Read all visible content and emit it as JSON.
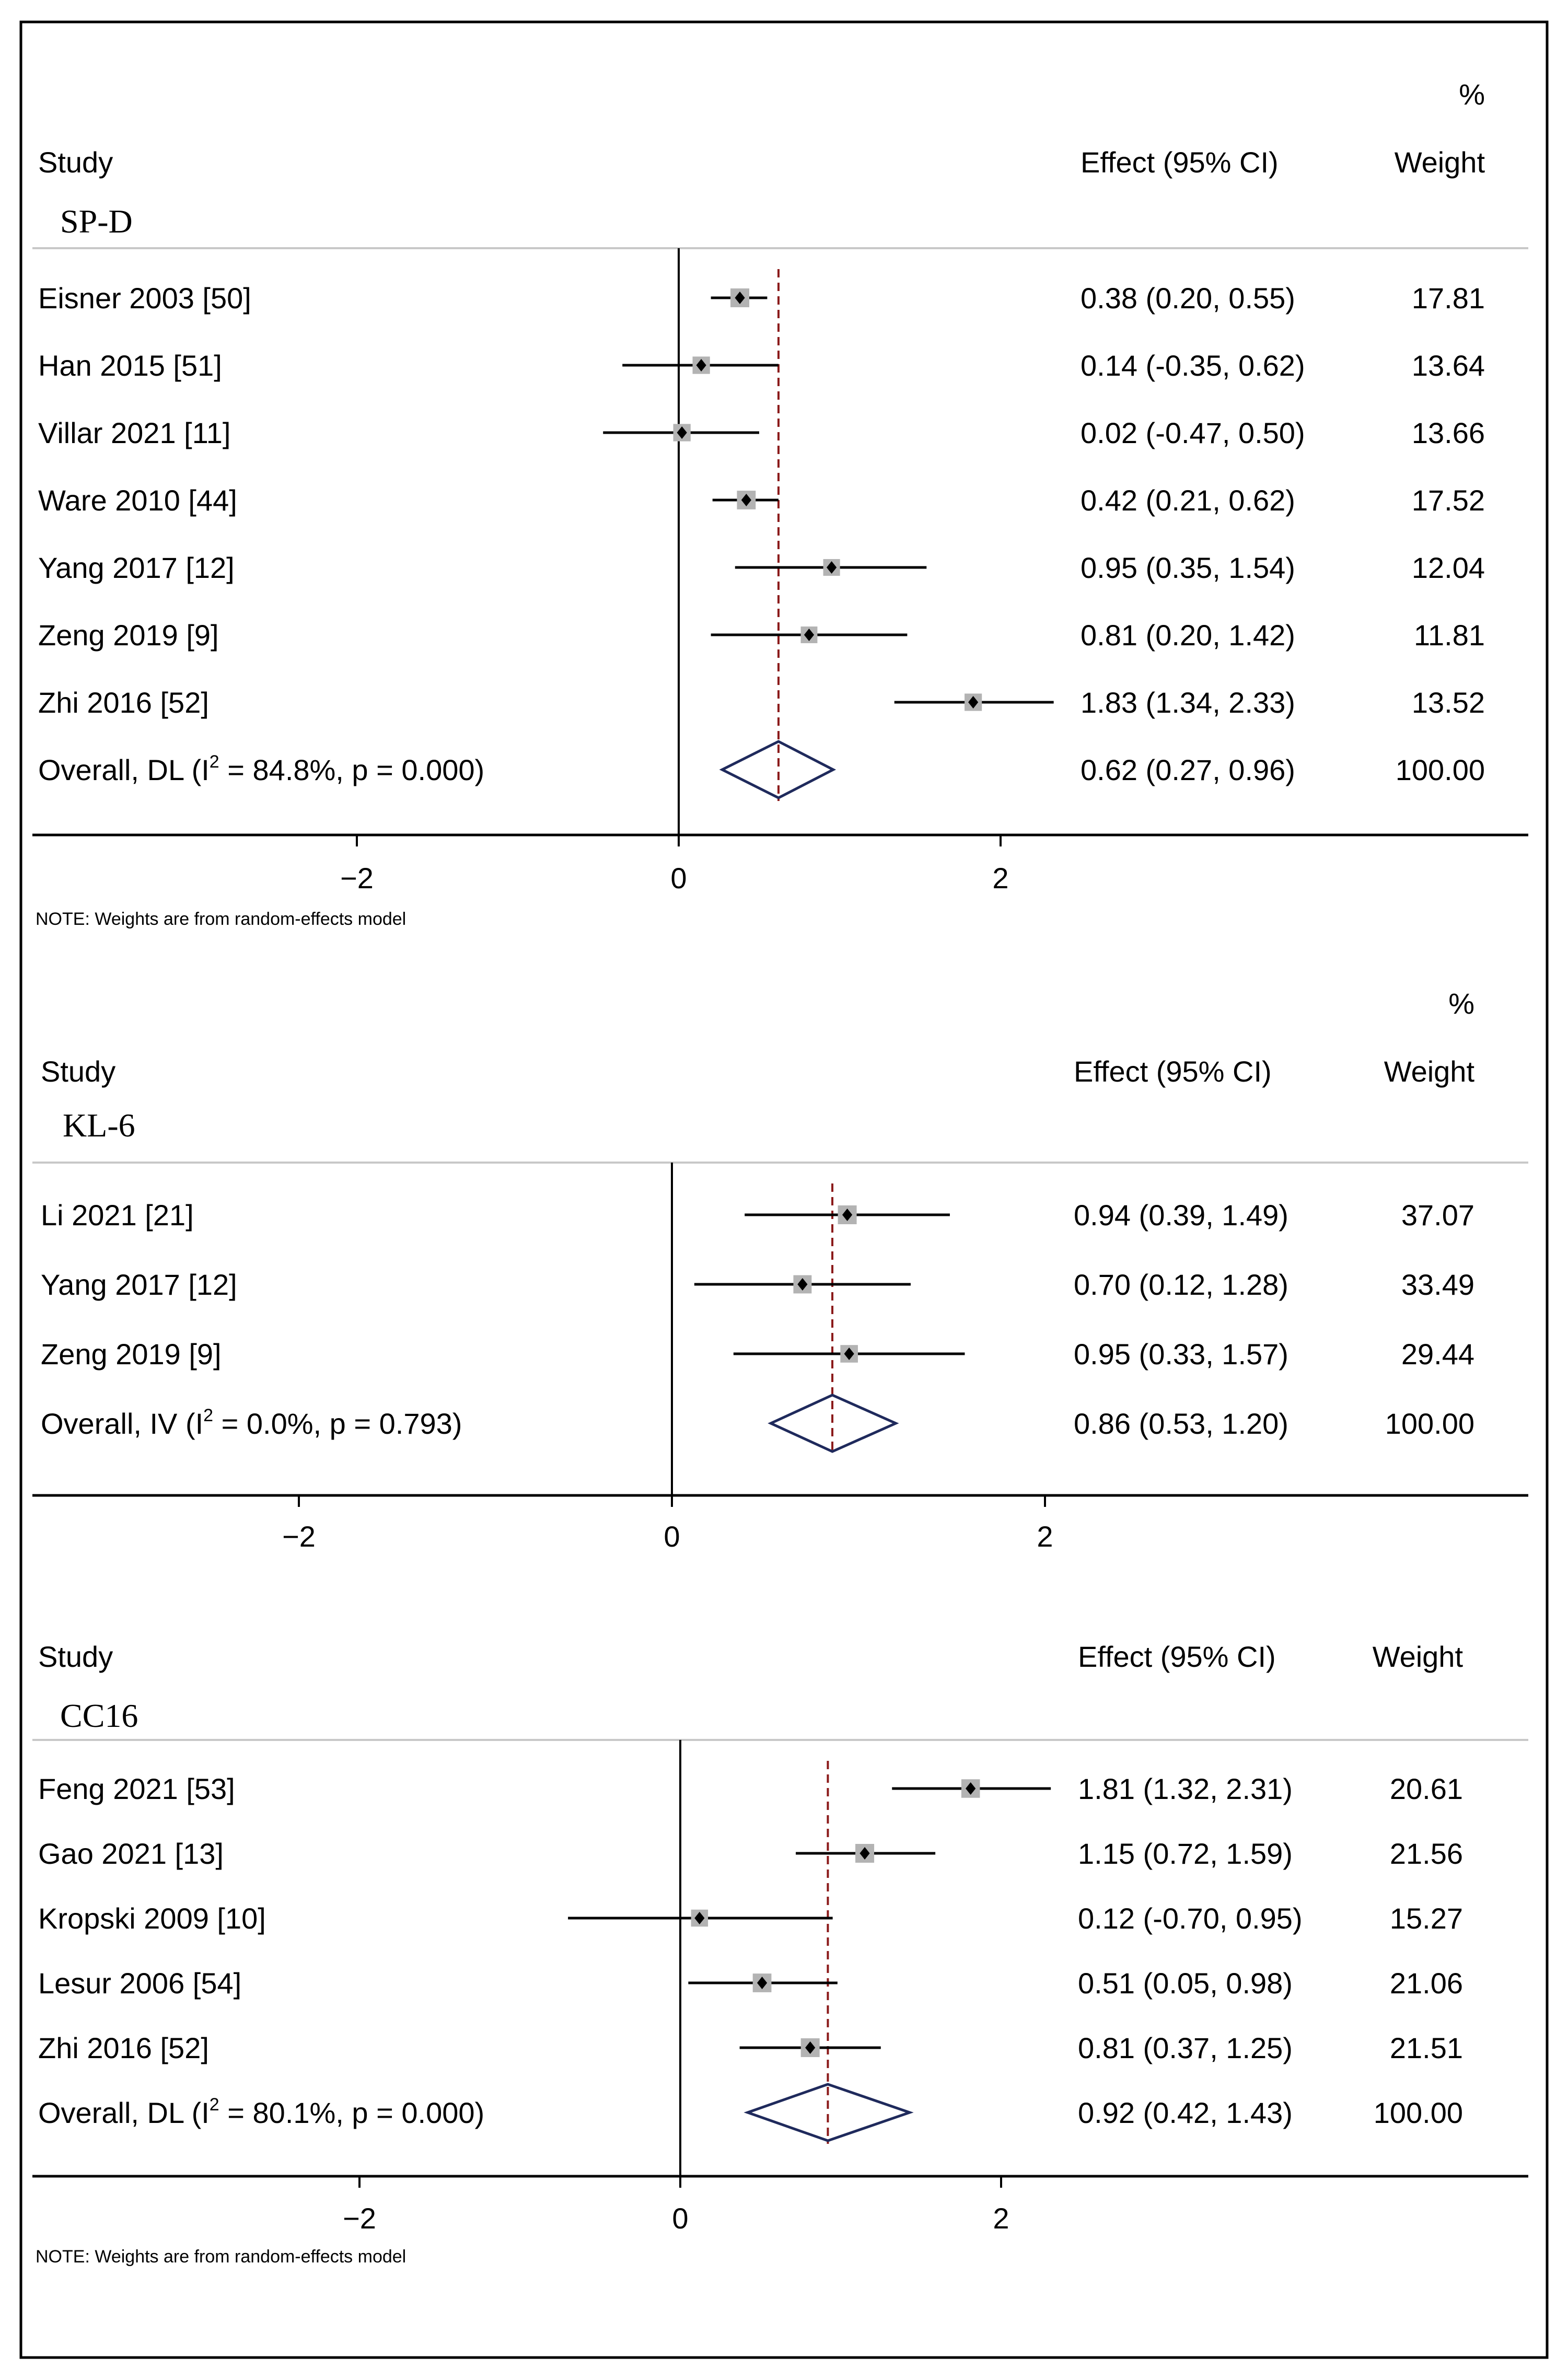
{
  "chart_data": [
    {
      "type": "forest",
      "panel_title": "SP-D",
      "percent_label": "%",
      "headers": {
        "study": "Study",
        "effect": "Effect (95% CI)",
        "weight": "Weight"
      },
      "x_ticks": [
        -2,
        0,
        2
      ],
      "xlim": [
        -4,
        5
      ],
      "studies": [
        {
          "label": "Eisner 2003 [50]",
          "effect": 0.38,
          "lo": 0.2,
          "hi": 0.55,
          "effect_text": "0.38 (0.20, 0.55)",
          "weight": 17.81,
          "weight_text": "17.81"
        },
        {
          "label": "Han 2015 [51]",
          "effect": 0.14,
          "lo": -0.35,
          "hi": 0.62,
          "effect_text": "0.14 (-0.35, 0.62)",
          "weight": 13.64,
          "weight_text": "13.64"
        },
        {
          "label": "Villar 2021 [11]",
          "effect": 0.02,
          "lo": -0.47,
          "hi": 0.5,
          "effect_text": "0.02 (-0.47, 0.50)",
          "weight": 13.66,
          "weight_text": "13.66"
        },
        {
          "label": "Ware 2010 [44]",
          "effect": 0.42,
          "lo": 0.21,
          "hi": 0.62,
          "effect_text": "0.42 (0.21, 0.62)",
          "weight": 17.52,
          "weight_text": "17.52"
        },
        {
          "label": "Yang 2017 [12]",
          "effect": 0.95,
          "lo": 0.35,
          "hi": 1.54,
          "effect_text": "0.95 (0.35, 1.54)",
          "weight": 12.04,
          "weight_text": "12.04"
        },
        {
          "label": "Zeng 2019 [9]",
          "effect": 0.81,
          "lo": 0.2,
          "hi": 1.42,
          "effect_text": "0.81 (0.20, 1.42)",
          "weight": 11.81,
          "weight_text": "11.81"
        },
        {
          "label": "Zhi 2016 [52]",
          "effect": 1.83,
          "lo": 1.34,
          "hi": 2.33,
          "effect_text": "1.83 (1.34, 2.33)",
          "weight": 13.52,
          "weight_text": "13.52"
        }
      ],
      "overall": {
        "label_pre": "Overall, DL (I",
        "label_sup": "2",
        "label_post": " = 84.8%, p = 0.000)",
        "effect": 0.62,
        "lo": 0.27,
        "hi": 0.96,
        "effect_text": "0.62 (0.27, 0.96)",
        "weight_text": "100.00"
      },
      "note": "NOTE: Weights are from random-effects model"
    },
    {
      "type": "forest",
      "panel_title": "KL-6",
      "percent_label": "%",
      "headers": {
        "study": "Study",
        "effect": "Effect (95% CI)",
        "weight": "Weight"
      },
      "x_ticks": [
        -2,
        0,
        2
      ],
      "xlim": [
        -4,
        5
      ],
      "studies": [
        {
          "label": "Li 2021 [21]",
          "effect": 0.94,
          "lo": 0.39,
          "hi": 1.49,
          "effect_text": "0.94 (0.39, 1.49)",
          "weight": 37.07,
          "weight_text": "37.07"
        },
        {
          "label": "Yang 2017 [12]",
          "effect": 0.7,
          "lo": 0.12,
          "hi": 1.28,
          "effect_text": "0.70 (0.12, 1.28)",
          "weight": 33.49,
          "weight_text": "33.49"
        },
        {
          "label": "Zeng 2019 [9]",
          "effect": 0.95,
          "lo": 0.33,
          "hi": 1.57,
          "effect_text": "0.95 (0.33, 1.57)",
          "weight": 29.44,
          "weight_text": "29.44"
        }
      ],
      "overall": {
        "label_pre": "Overall, IV (I",
        "label_sup": "2",
        "label_post": " = 0.0%, p = 0.793)",
        "effect": 0.86,
        "lo": 0.53,
        "hi": 1.2,
        "effect_text": "0.86 (0.53, 1.20)",
        "weight_text": "100.00"
      },
      "note": ""
    },
    {
      "type": "forest",
      "panel_title": "CC16",
      "percent_label": "",
      "headers": {
        "study": "Study",
        "effect": "Effect (95% CI)",
        "weight": "Weight"
      },
      "x_ticks": [
        -2,
        0,
        2
      ],
      "xlim": [
        -4,
        5
      ],
      "studies": [
        {
          "label": "Feng 2021 [53]",
          "effect": 1.81,
          "lo": 1.32,
          "hi": 2.31,
          "effect_text": "1.81 (1.32, 2.31)",
          "weight": 20.61,
          "weight_text": "20.61"
        },
        {
          "label": "Gao 2021 [13]",
          "effect": 1.15,
          "lo": 0.72,
          "hi": 1.59,
          "effect_text": "1.15 (0.72, 1.59)",
          "weight": 21.56,
          "weight_text": "21.56"
        },
        {
          "label": "Kropski 2009 [10]",
          "effect": 0.12,
          "lo": -0.7,
          "hi": 0.95,
          "effect_text": "0.12 (-0.70, 0.95)",
          "weight": 15.27,
          "weight_text": "15.27"
        },
        {
          "label": "Lesur 2006 [54]",
          "effect": 0.51,
          "lo": 0.05,
          "hi": 0.98,
          "effect_text": "0.51 (0.05, 0.98)",
          "weight": 21.06,
          "weight_text": "21.06"
        },
        {
          "label": "Zhi 2016 [52]",
          "effect": 0.81,
          "lo": 0.37,
          "hi": 1.25,
          "effect_text": "0.81 (0.37, 1.25)",
          "weight": 21.51,
          "weight_text": "21.51"
        }
      ],
      "overall": {
        "label_pre": "Overall, DL (I",
        "label_sup": "2",
        "label_post": " = 80.1%, p = 0.000)",
        "effect": 0.92,
        "lo": 0.42,
        "hi": 1.43,
        "effect_text": "0.92 (0.42, 1.43)",
        "weight_text": "100.00"
      },
      "note": "NOTE: Weights are from random-effects model"
    }
  ],
  "colors": {
    "ci_line": "#000000",
    "weight_box": "#b3b3b3",
    "point": "#000000",
    "overall_diamond": "#1f2a5c",
    "overall_line": "#8b1a1a",
    "separator": "#c8c8c8"
  }
}
